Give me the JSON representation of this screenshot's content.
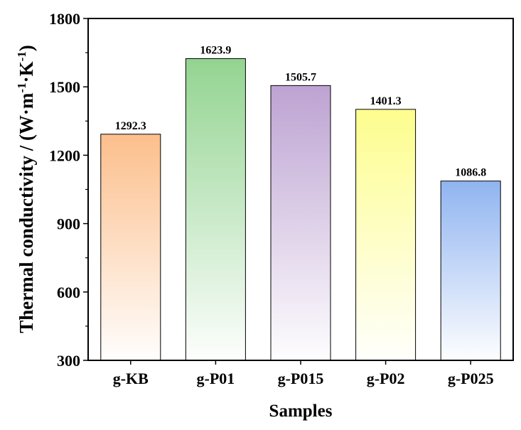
{
  "chart_data": {
    "type": "bar",
    "title": "",
    "xlabel": "Samples",
    "ylabel": {
      "prefix": "Thermal conductivity / (W·m",
      "sup1": "-1",
      "middle": "·K",
      "sup2": "-1",
      "suffix": ")"
    },
    "categories": [
      "g-KB",
      "g-P01",
      "g-P015",
      "g-P02",
      "g-P025"
    ],
    "values": [
      1292.3,
      1623.9,
      1505.7,
      1401.3,
      1086.8
    ],
    "data_labels": [
      "1292.3",
      "1623.9",
      "1505.7",
      "1401.3",
      "1086.8"
    ],
    "ylim": [
      300,
      1800
    ],
    "yticks": [
      300,
      600,
      900,
      1200,
      1500,
      1800
    ],
    "ytick_labels": [
      "300",
      "600",
      "900",
      "1200",
      "1500",
      "1800"
    ],
    "grid": false,
    "colors": [
      "#fcbf8c",
      "#93d491",
      "#bda3d2",
      "#fdfd8e",
      "#90b4f0"
    ]
  }
}
